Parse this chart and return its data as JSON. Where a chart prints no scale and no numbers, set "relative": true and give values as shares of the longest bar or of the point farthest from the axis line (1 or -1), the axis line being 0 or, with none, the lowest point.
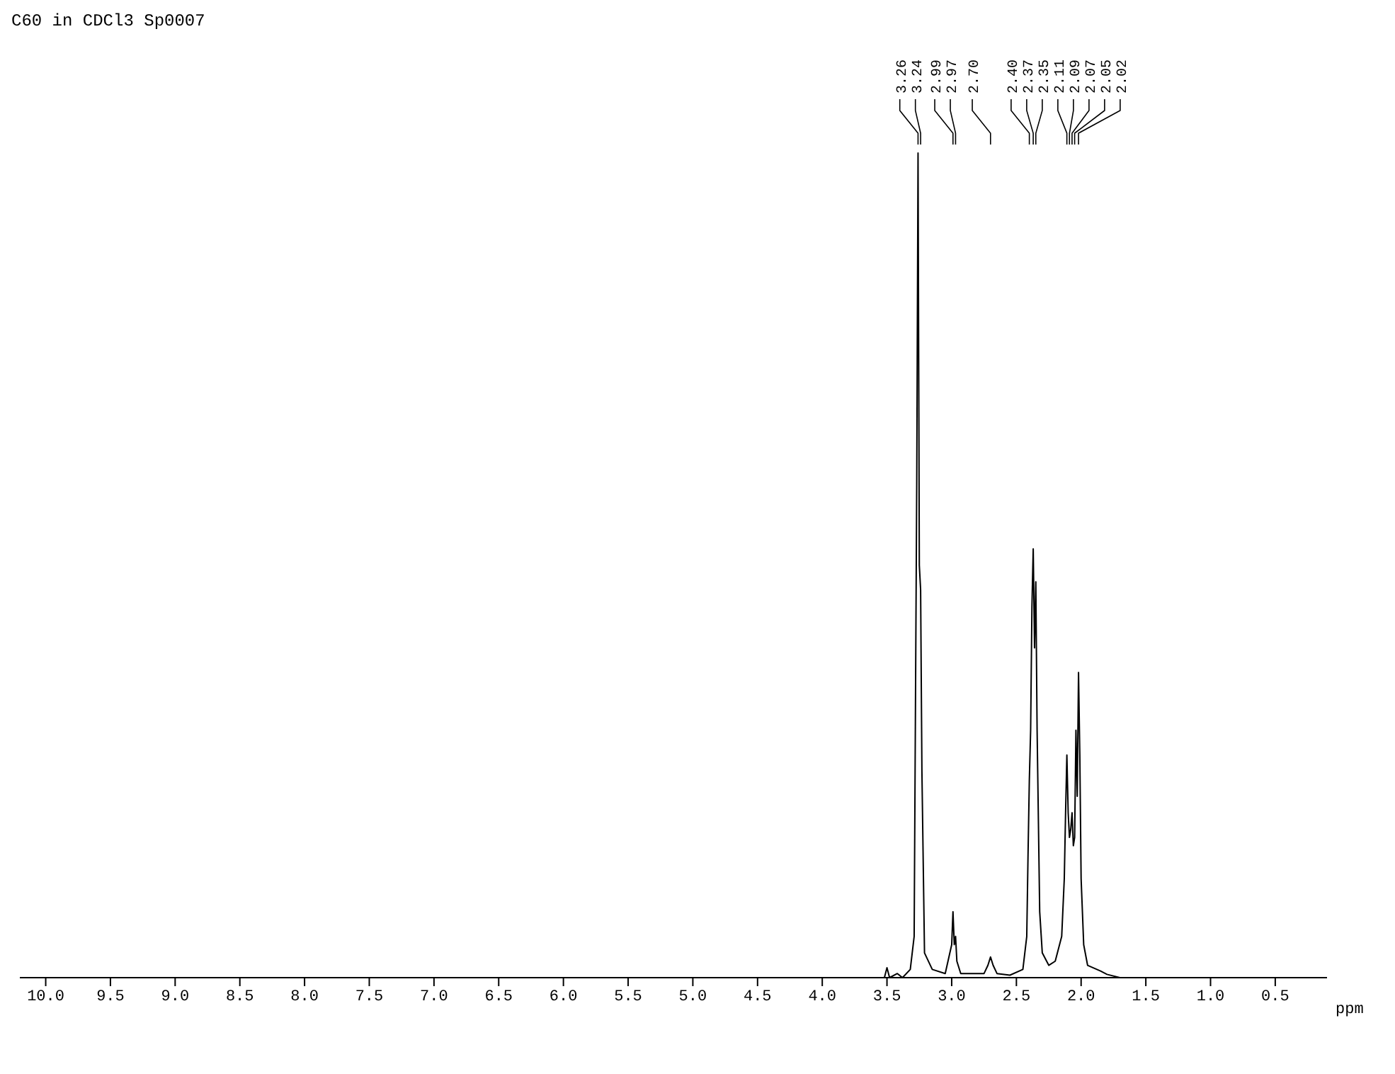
{
  "chart_data": {
    "type": "line",
    "title": "C60 in CDCl3 Sp0007",
    "xlabel": "ppm",
    "relative": true,
    "x": [
      10.2,
      3.6,
      3.52,
      3.5,
      3.48,
      3.42,
      3.38,
      3.32,
      3.29,
      3.27,
      3.26,
      3.25,
      3.24,
      3.23,
      3.21,
      3.15,
      3.05,
      3.0,
      2.99,
      2.98,
      2.97,
      2.96,
      2.93,
      2.75,
      2.72,
      2.7,
      2.68,
      2.65,
      2.55,
      2.45,
      2.42,
      2.41,
      2.4,
      2.39,
      2.38,
      2.37,
      2.36,
      2.35,
      2.34,
      2.32,
      2.3,
      2.25,
      2.2,
      2.15,
      2.13,
      2.12,
      2.11,
      2.1,
      2.09,
      2.08,
      2.07,
      2.06,
      2.05,
      2.04,
      2.03,
      2.02,
      2.01,
      2.0,
      1.98,
      1.95,
      1.85,
      1.8,
      1.7,
      0.1
    ],
    "series": [
      {
        "color": "#000000",
        "values": [
          0,
          0,
          0,
          0.012,
          0,
          0.005,
          0,
          0.01,
          0.05,
          0.6,
          1.0,
          0.5,
          0.47,
          0.25,
          0.03,
          0.01,
          0.005,
          0.04,
          0.08,
          0.04,
          0.05,
          0.02,
          0.005,
          0.005,
          0.015,
          0.025,
          0.015,
          0.005,
          0.003,
          0.01,
          0.05,
          0.15,
          0.24,
          0.3,
          0.45,
          0.52,
          0.4,
          0.48,
          0.3,
          0.08,
          0.03,
          0.015,
          0.02,
          0.05,
          0.12,
          0.2,
          0.27,
          0.2,
          0.17,
          0.18,
          0.2,
          0.16,
          0.17,
          0.3,
          0.22,
          0.37,
          0.27,
          0.12,
          0.04,
          0.015,
          0.008,
          0.004,
          0,
          0
        ]
      }
    ],
    "xlim": [
      10.2,
      0.1
    ],
    "xticks": [
      {
        "value": 10,
        "label": "10.0"
      },
      9.5,
      {
        "value": 9,
        "label": "9.0"
      },
      8.5,
      {
        "value": 8,
        "label": "8.0"
      },
      7.5,
      {
        "value": 7,
        "label": "7.0"
      },
      6.5,
      {
        "value": 6,
        "label": "6.0"
      },
      5.5,
      {
        "value": 5,
        "label": "5.0"
      },
      4.5,
      {
        "value": 4,
        "label": "4.0"
      },
      3.5,
      {
        "value": 3,
        "label": "3.0"
      },
      2.5,
      {
        "value": 2,
        "label": "2.0"
      },
      1.5,
      {
        "value": 1,
        "label": "1.0"
      },
      0.5
    ],
    "annotations": [
      {
        "text": "3.26",
        "x": 3.26
      },
      {
        "text": "3.24",
        "x": 3.24
      },
      {
        "text": "2.99",
        "x": 2.99
      },
      {
        "text": "2.97",
        "x": 2.97
      },
      {
        "text": "2.70",
        "x": 2.7
      },
      {
        "text": "2.40",
        "x": 2.4
      },
      {
        "text": "2.37",
        "x": 2.37
      },
      {
        "text": "2.35",
        "x": 2.35
      },
      {
        "text": "2.11",
        "x": 2.11
      },
      {
        "text": "2.09",
        "x": 2.09
      },
      {
        "text": "2.07",
        "x": 2.07
      },
      {
        "text": "2.05",
        "x": 2.05
      },
      {
        "text": "2.02",
        "x": 2.02
      }
    ],
    "grid": false,
    "legend": false,
    "marker": "none",
    "line_style": "solid"
  }
}
